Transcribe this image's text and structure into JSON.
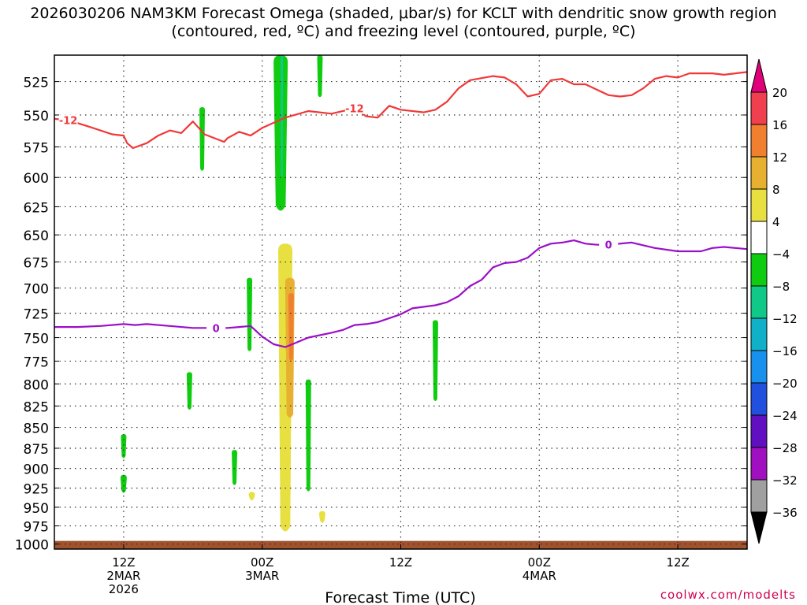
{
  "title": "2026030206 NAM3KM Forecast Omega (shaded, μbar/s) for KCLT with dendritic snow growth region (contoured, red, ºC) and freezing level (contoured, purple, ºC)",
  "credit": "coolwx.com/modelts",
  "chart_data": {
    "type": "contour",
    "xlabel": "Forecast Time (UTC)",
    "ylabel": "",
    "x_ticks": [
      {
        "hour": 6,
        "lines": [
          "12Z",
          "2MAR",
          "2026"
        ]
      },
      {
        "hour": 18,
        "lines": [
          "00Z",
          "3MAR"
        ]
      },
      {
        "hour": 30,
        "lines": [
          "12Z"
        ]
      },
      {
        "hour": 42,
        "lines": [
          "00Z",
          "4MAR"
        ]
      },
      {
        "hour": 54,
        "lines": [
          "12Z"
        ]
      }
    ],
    "xlim_hours": [
      0,
      60
    ],
    "y_ticks": [
      525,
      550,
      575,
      600,
      625,
      650,
      675,
      700,
      725,
      750,
      775,
      800,
      825,
      850,
      875,
      900,
      925,
      950,
      975,
      1000
    ],
    "ylim_hpa": [
      506,
      1007
    ],
    "y_scale": "log-pressure",
    "grid": true,
    "colorbar": {
      "levels": [
        "20",
        "16",
        "12",
        "8",
        "4",
        "−4",
        "−8",
        "−12",
        "−16",
        "−20",
        "−24",
        "−28",
        "−32",
        "−36"
      ],
      "colors": [
        "#f04050",
        "#f08030",
        "#e8b030",
        "#e8e040",
        "#ffffff",
        "#10cc10",
        "#10c888",
        "#10b0c8",
        "#1890ee",
        "#2050dd",
        "#6010c0",
        "#a010c0",
        "#a0a0a0"
      ],
      "top_color": "#e0007a",
      "bottom_color": "#000000"
    },
    "series": [
      {
        "name": "-12",
        "color": "#f03838",
        "points": [
          [
            0,
            553
          ],
          [
            1.2,
            554
          ],
          [
            3,
            559
          ],
          [
            5,
            565
          ],
          [
            6,
            566
          ],
          [
            6.3,
            572
          ],
          [
            6.8,
            576
          ],
          [
            8,
            572
          ],
          [
            9,
            566
          ],
          [
            10,
            562
          ],
          [
            11,
            564
          ],
          [
            12,
            555
          ],
          [
            13,
            565
          ],
          [
            14.7,
            571
          ],
          [
            15,
            568
          ],
          [
            16,
            563
          ],
          [
            17,
            566
          ],
          [
            18,
            560
          ],
          [
            20,
            552
          ],
          [
            22,
            547
          ],
          [
            24,
            549
          ],
          [
            26,
            545
          ],
          [
            27,
            551
          ],
          [
            28,
            552
          ],
          [
            29,
            543
          ],
          [
            30,
            546
          ],
          [
            32,
            548
          ],
          [
            33,
            546
          ],
          [
            34,
            540
          ],
          [
            35,
            530
          ],
          [
            36,
            524
          ],
          [
            38,
            521
          ],
          [
            39,
            522
          ],
          [
            40,
            527
          ],
          [
            41,
            536
          ],
          [
            42,
            534
          ],
          [
            43,
            524
          ],
          [
            44,
            523
          ],
          [
            45,
            527
          ],
          [
            46,
            527
          ],
          [
            47,
            531
          ],
          [
            48,
            535
          ],
          [
            49,
            536
          ],
          [
            50,
            535
          ],
          [
            51,
            530
          ],
          [
            52,
            523
          ],
          [
            53,
            521
          ],
          [
            54,
            522
          ],
          [
            55,
            519
          ],
          [
            57,
            519
          ],
          [
            58,
            520
          ],
          [
            59,
            519
          ],
          [
            60,
            518
          ]
        ]
      },
      {
        "name": "0",
        "color": "#9a10c8",
        "points": [
          [
            0,
            739
          ],
          [
            2,
            739
          ],
          [
            4,
            738
          ],
          [
            6,
            736
          ],
          [
            7,
            737
          ],
          [
            8,
            736
          ],
          [
            10,
            738
          ],
          [
            12,
            740
          ],
          [
            14,
            740
          ],
          [
            15,
            740
          ],
          [
            16,
            739
          ],
          [
            17,
            738
          ],
          [
            18,
            749
          ],
          [
            19,
            757
          ],
          [
            20,
            760
          ],
          [
            21,
            755
          ],
          [
            22,
            750
          ],
          [
            24,
            745
          ],
          [
            25,
            742
          ],
          [
            26,
            737
          ],
          [
            27,
            736
          ],
          [
            28,
            734
          ],
          [
            29,
            730
          ],
          [
            30,
            726
          ],
          [
            31,
            720
          ],
          [
            33,
            717
          ],
          [
            34,
            714
          ],
          [
            35,
            708
          ],
          [
            36,
            698
          ],
          [
            37,
            692
          ],
          [
            38,
            680
          ],
          [
            39,
            676
          ],
          [
            40,
            675
          ],
          [
            41,
            671
          ],
          [
            42,
            662
          ],
          [
            43,
            658
          ],
          [
            44,
            657
          ],
          [
            45,
            655
          ],
          [
            46,
            658
          ],
          [
            47,
            659
          ],
          [
            48,
            659
          ],
          [
            50,
            657
          ],
          [
            52,
            662
          ],
          [
            54,
            665
          ],
          [
            56,
            665
          ],
          [
            57,
            662
          ],
          [
            58,
            661
          ],
          [
            60,
            663
          ]
        ]
      }
    ],
    "shaded_regions": [
      {
        "band": "-4 to -8",
        "color": "#10cc10",
        "t": 19.6,
        "p_top": 506,
        "p_bottom": 630
      },
      {
        "band": "-8 to -12",
        "color": "#10c888",
        "t": 19.7,
        "p_top": 506,
        "p_bottom": 600
      },
      {
        "band": "-4 to -8",
        "color": "#10cc10",
        "t": 12.8,
        "p_top": 544,
        "p_bottom": 595
      },
      {
        "band": "-4 to -8",
        "color": "#10cc10",
        "t": 23.0,
        "p_top": 506,
        "p_bottom": 537
      },
      {
        "band": "-4 to -8",
        "color": "#10cc10",
        "t": 16.9,
        "p_top": 690,
        "p_bottom": 765
      },
      {
        "band": "-4 to -8",
        "color": "#10cc10",
        "t": 11.7,
        "p_top": 787,
        "p_bottom": 830
      },
      {
        "band": "-4 to -8",
        "color": "#10cc10",
        "t": 15.6,
        "p_top": 877,
        "p_bottom": 922
      },
      {
        "band": "-4 to -8",
        "color": "#10cc10",
        "t": 6.0,
        "p_top": 858,
        "p_bottom": 888
      },
      {
        "band": "-4 to -8",
        "color": "#10cc10",
        "t": 6.0,
        "p_top": 908,
        "p_bottom": 932
      },
      {
        "band": "-4 to -8",
        "color": "#10cc10",
        "t": 22.0,
        "p_top": 795,
        "p_bottom": 930
      },
      {
        "band": "-4 to -8",
        "color": "#10cc10",
        "t": 33.0,
        "p_top": 732,
        "p_bottom": 820
      },
      {
        "band": "4 to 8",
        "color": "#e8e040",
        "t": 20.0,
        "p_top": 658,
        "p_bottom": 985
      },
      {
        "band": "8 to 12",
        "color": "#e8b030",
        "t": 20.4,
        "p_top": 690,
        "p_bottom": 840
      },
      {
        "band": "12 to 16",
        "color": "#f08030",
        "t": 20.5,
        "p_top": 705,
        "p_bottom": 775
      },
      {
        "band": "4 to 8",
        "color": "#e8e040",
        "t": 17.1,
        "p_top": 930,
        "p_bottom": 942
      },
      {
        "band": "4 to 8",
        "color": "#e8e040",
        "t": 23.2,
        "p_top": 955,
        "p_bottom": 972
      }
    ],
    "surface": {
      "color": "#a0522d",
      "p": 1000
    }
  }
}
